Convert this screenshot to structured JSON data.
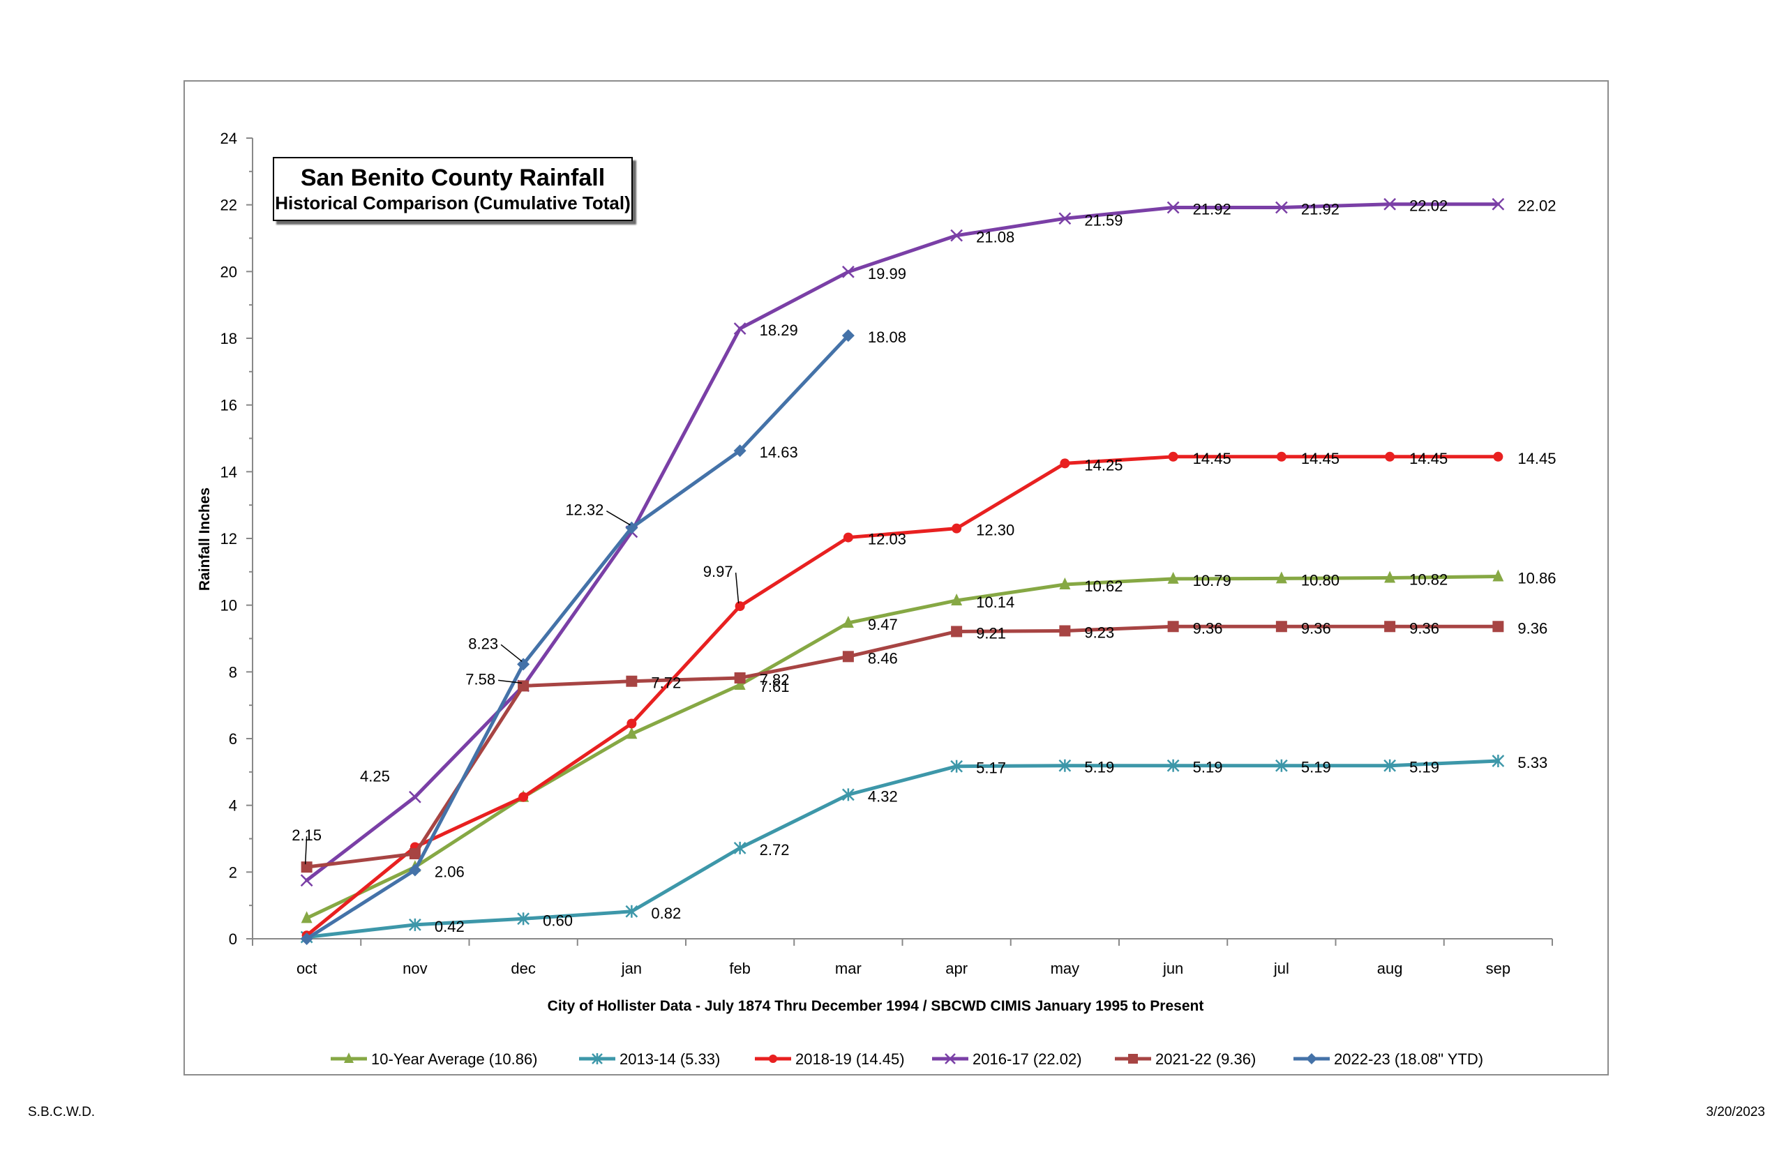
{
  "chart_data": {
    "type": "line",
    "title": "San Benito County Rainfall",
    "subtitle": "Historical Comparison (Cumulative Total)",
    "xlabel": "City of Hollister Data - July 1874 Thru December 1994 / SBCWD CIMIS January 1995 to Present",
    "ylabel": "Rainfall Inches",
    "categories": [
      "oct",
      "nov",
      "dec",
      "jan",
      "feb",
      "mar",
      "apr",
      "may",
      "jun",
      "jul",
      "aug",
      "sep"
    ],
    "ylim": [
      0,
      24
    ],
    "yticks": [
      0,
      2,
      4,
      6,
      8,
      10,
      12,
      14,
      16,
      18,
      20,
      22,
      24
    ],
    "grid": false,
    "legend_position": "bottom",
    "series": [
      {
        "name": "10-Year Average (10.86)",
        "color": "#86a844",
        "marker": "triangle",
        "values": [
          0.62,
          2.15,
          4.25,
          6.14,
          7.61,
          9.47,
          10.14,
          10.62,
          10.79,
          10.8,
          10.82,
          10.86
        ]
      },
      {
        "name": "2013-14 (5.33)",
        "color": "#3d97a9",
        "marker": "asterisk",
        "values": [
          0.05,
          0.42,
          0.6,
          0.82,
          2.72,
          4.32,
          5.17,
          5.19,
          5.19,
          5.19,
          5.19,
          5.33
        ]
      },
      {
        "name": "2018-19 (14.45)",
        "color": "#e82020",
        "marker": "circle",
        "values": [
          0.1,
          2.75,
          4.25,
          6.45,
          9.97,
          12.03,
          12.3,
          14.25,
          14.45,
          14.45,
          14.45,
          14.45
        ]
      },
      {
        "name": "2016-17 (22.02)",
        "color": "#7a3fa6",
        "marker": "x",
        "values": [
          1.75,
          4.25,
          7.58,
          12.2,
          18.29,
          19.99,
          21.08,
          21.59,
          21.92,
          21.92,
          22.02,
          22.02
        ]
      },
      {
        "name": "2021-22 (9.36)",
        "color": "#a74443",
        "marker": "square",
        "values": [
          2.15,
          2.55,
          7.58,
          7.72,
          7.82,
          8.46,
          9.21,
          9.23,
          9.36,
          9.36,
          9.36,
          9.36
        ]
      },
      {
        "name": "2022-23 (18.08\" YTD)",
        "color": "#4472a8",
        "marker": "diamond",
        "values": [
          0.0,
          2.06,
          8.23,
          12.32,
          14.63,
          18.08,
          null,
          null,
          null,
          null,
          null,
          null
        ]
      }
    ],
    "data_labels": [
      {
        "text": "2.15",
        "x": "oct",
        "y": 2.15
      },
      {
        "text": "4.25",
        "x": "nov",
        "y": 4.25
      },
      {
        "text": "2.06",
        "x": "nov",
        "y": 2.06
      },
      {
        "text": "0.42",
        "x": "nov",
        "y": 0.42
      },
      {
        "text": "8.23",
        "x": "dec",
        "y": 8.23
      },
      {
        "text": "7.58",
        "x": "dec",
        "y": 7.58
      },
      {
        "text": "0.60",
        "x": "dec",
        "y": 0.6
      },
      {
        "text": "12.32",
        "x": "jan",
        "y": 12.32
      },
      {
        "text": "7.72",
        "x": "jan",
        "y": 7.72
      },
      {
        "text": "0.82",
        "x": "jan",
        "y": 0.82
      },
      {
        "text": "18.29",
        "x": "feb",
        "y": 18.29
      },
      {
        "text": "14.63",
        "x": "feb",
        "y": 14.63
      },
      {
        "text": "9.97",
        "x": "feb",
        "y": 9.97
      },
      {
        "text": "7.82",
        "x": "feb",
        "y": 7.82
      },
      {
        "text": "7.61",
        "x": "feb",
        "y": 7.61
      },
      {
        "text": "2.72",
        "x": "feb",
        "y": 2.72
      },
      {
        "text": "19.99",
        "x": "mar",
        "y": 19.99
      },
      {
        "text": "18.08",
        "x": "mar",
        "y": 18.08
      },
      {
        "text": "12.03",
        "x": "mar",
        "y": 12.03
      },
      {
        "text": "9.47",
        "x": "mar",
        "y": 9.47
      },
      {
        "text": "8.46",
        "x": "mar",
        "y": 8.46
      },
      {
        "text": "4.32",
        "x": "mar",
        "y": 4.32
      },
      {
        "text": "21.08",
        "x": "apr",
        "y": 21.08
      },
      {
        "text": "12.30",
        "x": "apr",
        "y": 12.3
      },
      {
        "text": "10.14",
        "x": "apr",
        "y": 10.14
      },
      {
        "text": "9.21",
        "x": "apr",
        "y": 9.21
      },
      {
        "text": "5.17",
        "x": "apr",
        "y": 5.17
      },
      {
        "text": "21.59",
        "x": "may",
        "y": 21.59
      },
      {
        "text": "14.25",
        "x": "may",
        "y": 14.25
      },
      {
        "text": "10.62",
        "x": "may",
        "y": 10.62
      },
      {
        "text": "9.23",
        "x": "may",
        "y": 9.23
      },
      {
        "text": "5.19",
        "x": "may",
        "y": 5.19
      },
      {
        "text": "21.92",
        "x": "jun",
        "y": 21.92
      },
      {
        "text": "14.45",
        "x": "jun",
        "y": 14.45
      },
      {
        "text": "10.79",
        "x": "jun",
        "y": 10.79
      },
      {
        "text": "9.36",
        "x": "jun",
        "y": 9.36
      },
      {
        "text": "5.19",
        "x": "jun",
        "y": 5.19
      },
      {
        "text": "21.92",
        "x": "jul",
        "y": 21.92
      },
      {
        "text": "14.45",
        "x": "jul",
        "y": 14.45
      },
      {
        "text": "10.80",
        "x": "jul",
        "y": 10.8
      },
      {
        "text": "9.36",
        "x": "jul",
        "y": 9.36
      },
      {
        "text": "5.19",
        "x": "jul",
        "y": 5.19
      },
      {
        "text": "22.02",
        "x": "aug",
        "y": 22.02
      },
      {
        "text": "14.45",
        "x": "aug",
        "y": 14.45
      },
      {
        "text": "10.82",
        "x": "aug",
        "y": 10.82
      },
      {
        "text": "9.36",
        "x": "aug",
        "y": 9.36
      },
      {
        "text": "5.19",
        "x": "aug",
        "y": 5.19
      },
      {
        "text": "22.02",
        "x": "sep",
        "y": 22.02
      },
      {
        "text": "14.45",
        "x": "sep",
        "y": 14.45
      },
      {
        "text": "10.86",
        "x": "sep",
        "y": 10.86
      },
      {
        "text": "9.36",
        "x": "sep",
        "y": 9.36
      },
      {
        "text": "5.33",
        "x": "sep",
        "y": 5.33
      }
    ]
  },
  "footer": {
    "left": "S.B.C.W.D.",
    "right": "3/20/2023"
  }
}
